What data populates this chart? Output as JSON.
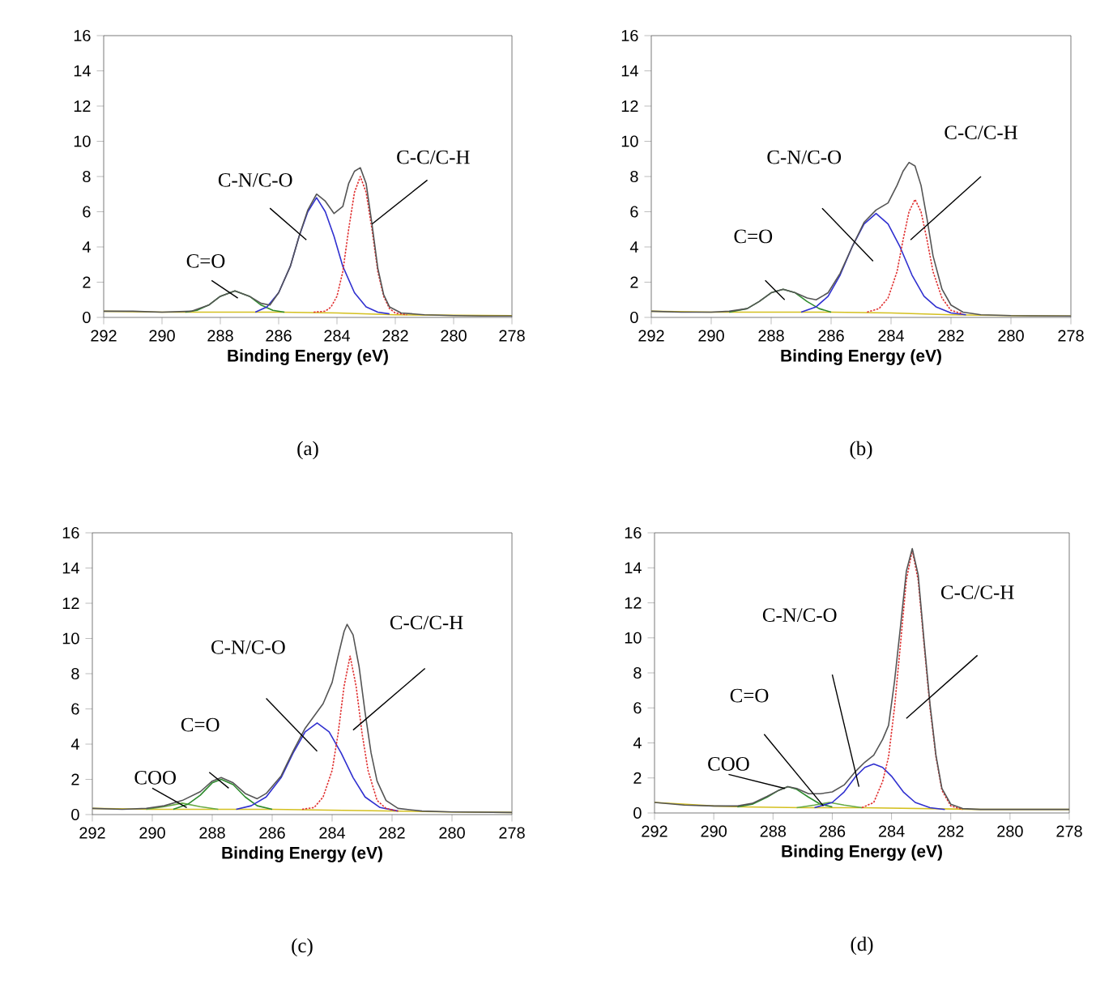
{
  "chart_data": [
    {
      "type": "line",
      "title": "(a)",
      "xlabel": "Binding Energy (eV)",
      "xlim": [
        292,
        278
      ],
      "ylim": [
        0,
        16
      ],
      "xticks": [
        292,
        290,
        288,
        286,
        284,
        282,
        280,
        278
      ],
      "yticks": [
        0,
        2,
        4,
        6,
        8,
        10,
        12,
        14,
        16
      ],
      "annotations": [
        "C-C/C-H",
        "C-N/C-O",
        "C=O"
      ],
      "series": [
        {
          "color": "#d4c020",
          "x": [
            292,
            290,
            288,
            286,
            284,
            282,
            280,
            278
          ],
          "values": [
            0.35,
            0.3,
            0.3,
            0.3,
            0.25,
            0.15,
            0.12,
            0.1
          ]
        },
        {
          "color": "#2e8b2e",
          "x": [
            289.2,
            288.8,
            288.4,
            288.0,
            287.5,
            287.0,
            286.6,
            286.2,
            285.8
          ],
          "values": [
            0.3,
            0.4,
            0.7,
            1.2,
            1.5,
            1.2,
            0.7,
            0.4,
            0.3
          ]
        },
        {
          "color": "#3030d0",
          "x": [
            286.8,
            286.4,
            286.0,
            285.6,
            285.3,
            285.0,
            284.7,
            284.4,
            284.1,
            283.8,
            283.4,
            283.0,
            282.6,
            282.2
          ],
          "values": [
            0.3,
            0.6,
            1.4,
            2.9,
            4.6,
            6.0,
            6.8,
            6.0,
            4.6,
            2.9,
            1.4,
            0.6,
            0.3,
            0.2
          ]
        },
        {
          "color": "#e03030",
          "line_style": "dotted",
          "x": [
            284.8,
            284.4,
            284.2,
            284.0,
            283.8,
            283.6,
            283.4,
            283.2,
            283.0,
            282.8,
            282.6,
            282.4,
            282.2,
            282.0,
            281.6
          ],
          "values": [
            0.3,
            0.35,
            0.6,
            1.2,
            2.6,
            5.0,
            7.1,
            8.0,
            7.1,
            5.0,
            2.6,
            1.2,
            0.5,
            0.25,
            0.15
          ]
        },
        {
          "color": "#555555",
          "x": [
            292,
            291,
            290,
            289,
            288.4,
            288.0,
            287.5,
            287.0,
            286.6,
            286.3,
            286.0,
            285.6,
            285.3,
            285.0,
            284.7,
            284.4,
            284.1,
            283.8,
            283.6,
            283.4,
            283.2,
            283.0,
            282.8,
            282.6,
            282.4,
            282.2,
            281.8,
            281,
            280,
            279,
            278
          ],
          "values": [
            0.35,
            0.35,
            0.3,
            0.35,
            0.7,
            1.2,
            1.5,
            1.2,
            0.8,
            0.7,
            1.4,
            2.9,
            4.6,
            6.1,
            7.0,
            6.6,
            5.9,
            6.3,
            7.6,
            8.3,
            8.5,
            7.6,
            5.3,
            2.8,
            1.3,
            0.6,
            0.25,
            0.15,
            0.1,
            0.08,
            0.08
          ]
        }
      ]
    },
    {
      "type": "line",
      "title": "(b)",
      "xlabel": "Binding Energy (eV)",
      "xlim": [
        292,
        278
      ],
      "ylim": [
        0,
        16
      ],
      "xticks": [
        292,
        290,
        288,
        286,
        284,
        282,
        280,
        278
      ],
      "yticks": [
        0,
        2,
        4,
        6,
        8,
        10,
        12,
        14,
        16
      ],
      "annotations": [
        "C-C/C-H",
        "C-N/C-O",
        "C=O"
      ],
      "series": [
        {
          "color": "#d4c020",
          "x": [
            292,
            290,
            288,
            286,
            284,
            282,
            280,
            278
          ],
          "values": [
            0.35,
            0.3,
            0.3,
            0.3,
            0.25,
            0.15,
            0.1,
            0.08
          ]
        },
        {
          "color": "#2e8b2e",
          "x": [
            289.4,
            288.8,
            288.4,
            288.0,
            287.6,
            287.2,
            286.8,
            286.4,
            286.0
          ],
          "values": [
            0.3,
            0.5,
            0.9,
            1.4,
            1.6,
            1.4,
            0.9,
            0.5,
            0.3
          ]
        },
        {
          "color": "#3030d0",
          "x": [
            287.0,
            286.5,
            286.1,
            285.7,
            285.3,
            284.9,
            284.5,
            284.1,
            283.7,
            283.3,
            282.9,
            282.5,
            282.0,
            281.5
          ],
          "values": [
            0.3,
            0.6,
            1.2,
            2.4,
            4.0,
            5.3,
            5.9,
            5.3,
            4.0,
            2.4,
            1.2,
            0.6,
            0.25,
            0.15
          ]
        },
        {
          "color": "#e03030",
          "line_style": "dotted",
          "x": [
            284.8,
            284.4,
            284.1,
            283.8,
            283.6,
            283.4,
            283.2,
            283.0,
            282.8,
            282.6,
            282.3,
            282.0,
            281.6
          ],
          "values": [
            0.3,
            0.5,
            1.1,
            2.6,
            4.4,
            6.0,
            6.7,
            6.0,
            4.4,
            2.6,
            1.1,
            0.4,
            0.2
          ]
        },
        {
          "color": "#555555",
          "x": [
            292,
            291,
            290,
            289.4,
            288.8,
            288.4,
            288.0,
            287.6,
            287.2,
            286.8,
            286.5,
            286.1,
            285.7,
            285.3,
            284.9,
            284.5,
            284.1,
            283.8,
            283.6,
            283.4,
            283.2,
            283.0,
            282.8,
            282.6,
            282.3,
            282.0,
            281.6,
            281,
            280,
            278
          ],
          "values": [
            0.35,
            0.3,
            0.3,
            0.35,
            0.5,
            0.9,
            1.4,
            1.6,
            1.4,
            1.1,
            1.0,
            1.4,
            2.5,
            4.0,
            5.4,
            6.1,
            6.5,
            7.5,
            8.3,
            8.8,
            8.6,
            7.5,
            5.6,
            3.5,
            1.6,
            0.7,
            0.3,
            0.15,
            0.1,
            0.08
          ]
        }
      ]
    },
    {
      "type": "line",
      "title": "(c)",
      "xlabel": "Binding Energy (eV)",
      "xlim": [
        292,
        278
      ],
      "ylim": [
        0,
        16
      ],
      "xticks": [
        292,
        290,
        288,
        286,
        284,
        282,
        280,
        278
      ],
      "yticks": [
        0,
        2,
        4,
        6,
        8,
        10,
        12,
        14,
        16
      ],
      "annotations": [
        "C-C/C-H",
        "C-N/C-O",
        "C=O",
        "COO"
      ],
      "series": [
        {
          "color": "#d4c020",
          "x": [
            292,
            290,
            288,
            286,
            284,
            282,
            280,
            278
          ],
          "values": [
            0.35,
            0.3,
            0.3,
            0.3,
            0.25,
            0.2,
            0.15,
            0.12
          ]
        },
        {
          "color": "#66aa44",
          "x": [
            290.2,
            289.6,
            289.0,
            288.4,
            287.8
          ],
          "values": [
            0.3,
            0.45,
            0.65,
            0.45,
            0.3
          ]
        },
        {
          "color": "#2e8b2e",
          "x": [
            289.3,
            288.8,
            288.4,
            288.0,
            287.7,
            287.3,
            286.9,
            286.5,
            286.0
          ],
          "values": [
            0.3,
            0.6,
            1.1,
            1.8,
            2.0,
            1.7,
            1.0,
            0.5,
            0.3
          ]
        },
        {
          "color": "#3030d0",
          "x": [
            287.2,
            286.7,
            286.2,
            285.7,
            285.3,
            284.9,
            284.5,
            284.1,
            283.7,
            283.3,
            282.9,
            282.4,
            281.8
          ],
          "values": [
            0.3,
            0.5,
            1.0,
            2.1,
            3.5,
            4.7,
            5.2,
            4.7,
            3.5,
            2.1,
            1.0,
            0.4,
            0.2
          ]
        },
        {
          "color": "#e03030",
          "line_style": "dotted",
          "x": [
            285.0,
            284.6,
            284.3,
            284.0,
            283.8,
            283.6,
            283.4,
            283.2,
            283.0,
            282.8,
            282.5,
            282.2,
            281.8
          ],
          "values": [
            0.3,
            0.4,
            1.0,
            2.5,
            4.6,
            7.3,
            9.0,
            7.3,
            4.6,
            2.5,
            0.8,
            0.35,
            0.2
          ]
        },
        {
          "color": "#555555",
          "x": [
            292,
            291,
            290.2,
            289.6,
            289.0,
            288.4,
            288.0,
            287.7,
            287.3,
            286.9,
            286.5,
            286.2,
            285.7,
            285.3,
            284.9,
            284.6,
            284.3,
            284.0,
            283.8,
            283.6,
            283.5,
            283.3,
            283.1,
            282.9,
            282.7,
            282.5,
            282.2,
            281.8,
            281.0,
            280,
            278
          ],
          "values": [
            0.35,
            0.3,
            0.35,
            0.5,
            0.8,
            1.3,
            1.9,
            2.1,
            1.8,
            1.2,
            0.9,
            1.2,
            2.2,
            3.6,
            4.9,
            5.6,
            6.3,
            7.5,
            9.0,
            10.4,
            10.8,
            10.2,
            8.4,
            5.8,
            3.5,
            1.9,
            0.8,
            0.35,
            0.2,
            0.15,
            0.12
          ]
        }
      ]
    },
    {
      "type": "line",
      "title": "(d)",
      "xlabel": "Binding Energy (eV)",
      "xlim": [
        292,
        278
      ],
      "ylim": [
        0,
        16
      ],
      "xticks": [
        292,
        290,
        288,
        286,
        284,
        282,
        280,
        278
      ],
      "yticks": [
        0,
        2,
        4,
        6,
        8,
        10,
        12,
        14,
        16
      ],
      "annotations": [
        "C-C/C-H",
        "C-N/C-O",
        "C=O",
        "COO"
      ],
      "series": [
        {
          "color": "#d4c020",
          "x": [
            292,
            291,
            290,
            289,
            287,
            285,
            283,
            281,
            278
          ],
          "values": [
            0.6,
            0.5,
            0.4,
            0.35,
            0.3,
            0.3,
            0.25,
            0.2,
            0.2
          ]
        },
        {
          "color": "#2e8b2e",
          "x": [
            289.2,
            288.7,
            288.2,
            287.8,
            287.5,
            287.2,
            286.8,
            286.4,
            286.0
          ],
          "values": [
            0.35,
            0.5,
            0.9,
            1.3,
            1.5,
            1.35,
            0.9,
            0.5,
            0.35
          ]
        },
        {
          "color": "#66aa44",
          "x": [
            287.2,
            286.6,
            286.1,
            285.6,
            285.0
          ],
          "values": [
            0.3,
            0.45,
            0.6,
            0.45,
            0.3
          ]
        },
        {
          "color": "#3030d0",
          "x": [
            286.6,
            286.0,
            285.6,
            285.2,
            284.9,
            284.6,
            284.3,
            284.0,
            283.6,
            283.2,
            282.7,
            282.2
          ],
          "values": [
            0.3,
            0.6,
            1.2,
            2.1,
            2.6,
            2.8,
            2.6,
            2.1,
            1.2,
            0.6,
            0.3,
            0.2
          ]
        },
        {
          "color": "#e03030",
          "line_style": "dotted",
          "x": [
            285.0,
            284.6,
            284.3,
            284.1,
            283.9,
            283.7,
            283.5,
            283.3,
            283.1,
            282.9,
            282.7,
            282.5,
            282.3,
            282.0,
            281.6
          ],
          "values": [
            0.3,
            0.6,
            1.8,
            3.2,
            6.0,
            9.6,
            13.3,
            15.0,
            13.3,
            9.6,
            6.0,
            3.2,
            1.3,
            0.4,
            0.2
          ]
        },
        {
          "color": "#555555",
          "x": [
            292,
            291,
            290,
            289.2,
            288.7,
            288.2,
            287.8,
            287.5,
            287.2,
            286.8,
            286.4,
            286.0,
            285.6,
            285.2,
            284.9,
            284.6,
            284.3,
            284.1,
            283.9,
            283.7,
            283.5,
            283.3,
            283.1,
            282.9,
            282.7,
            282.5,
            282.3,
            282.0,
            281.6,
            281.0,
            280,
            278
          ],
          "values": [
            0.6,
            0.45,
            0.4,
            0.4,
            0.55,
            0.95,
            1.3,
            1.5,
            1.4,
            1.1,
            1.1,
            1.2,
            1.6,
            2.4,
            2.9,
            3.3,
            4.2,
            5.0,
            7.5,
            10.6,
            13.8,
            15.1,
            13.6,
            9.8,
            6.2,
            3.3,
            1.4,
            0.5,
            0.25,
            0.2,
            0.2,
            0.2
          ]
        }
      ]
    }
  ]
}
